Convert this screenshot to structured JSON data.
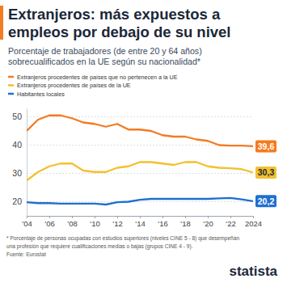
{
  "chart_data": {
    "type": "line",
    "title": [
      "Extranjeros: más expuestos a",
      "empleos por debajo de su nivel"
    ],
    "subtitle": [
      "Porcentaje de trabajadores (de entre 20 y 64 años)",
      "sobrecualificados en la UE según su nacionalidad*"
    ],
    "x": [
      2004,
      2005,
      2006,
      2007,
      2008,
      2009,
      2010,
      2011,
      2012,
      2013,
      2014,
      2015,
      2016,
      2017,
      2018,
      2019,
      2020,
      2021,
      2022,
      2023,
      2024
    ],
    "series": [
      {
        "name": "Extranjeros procedentes de países que no pertenecen a la UE",
        "color": "#f47b20",
        "values": [
          45,
          49,
          50.5,
          50.5,
          49.5,
          48,
          47.5,
          46.5,
          47.5,
          45.5,
          45.5,
          45,
          43.5,
          43,
          43,
          42,
          41.5,
          40,
          39.8,
          39.8,
          39.6
        ],
        "value_labels": [
          null,
          null,
          null,
          null,
          null,
          null,
          null,
          null,
          null,
          null,
          null,
          null,
          null,
          null,
          null,
          null,
          null,
          null,
          null,
          null,
          "39,6"
        ]
      },
      {
        "name": "Extranjeros procedentes de países de la UE",
        "color": "#f2c12e",
        "values": [
          27.5,
          30.5,
          32.5,
          33.5,
          33.5,
          31,
          30.5,
          30.5,
          32,
          32.5,
          34,
          34,
          33.5,
          33,
          34,
          34,
          32.5,
          32,
          31.8,
          31.5,
          30.3
        ],
        "value_labels": [
          null,
          null,
          null,
          null,
          null,
          null,
          null,
          null,
          null,
          null,
          null,
          null,
          null,
          null,
          null,
          null,
          null,
          null,
          null,
          null,
          "30,3"
        ]
      },
      {
        "name": "Habitantes locales",
        "color": "#1f6fd1",
        "values": [
          19.8,
          19.5,
          19.5,
          19.3,
          19.3,
          19.3,
          19.3,
          19,
          19.8,
          20,
          20.7,
          21,
          21,
          21,
          21,
          21,
          21,
          21.2,
          21.3,
          20.8,
          20.2
        ],
        "value_labels": [
          null,
          null,
          null,
          null,
          null,
          null,
          null,
          null,
          null,
          null,
          null,
          null,
          null,
          null,
          null,
          null,
          null,
          null,
          null,
          null,
          "20,2"
        ]
      }
    ],
    "xlim": [
      2004,
      2024
    ],
    "xticks": [
      {
        "value": 2004,
        "label": "'04"
      },
      {
        "value": 2006,
        "label": "'06"
      },
      {
        "value": 2008,
        "label": "'08"
      },
      {
        "value": 2010,
        "label": "'10"
      },
      {
        "value": 2012,
        "label": "'12"
      },
      {
        "value": 2014,
        "label": "'14"
      },
      {
        "value": 2016,
        "label": "'16"
      },
      {
        "value": 2018,
        "label": "'18"
      },
      {
        "value": 2020,
        "label": "'20"
      },
      {
        "value": 2022,
        "label": "'22"
      },
      {
        "value": 2024,
        "label": "2024"
      }
    ],
    "ylim": [
      15,
      53
    ],
    "yticks": [
      20,
      30,
      40,
      50
    ],
    "grid": true,
    "data_labels": true,
    "footnote": [
      "* Porcentaje de personas ocupadas con estudios superiores (niveles CINE 5 - 8) que desempeñan",
      "una profesión que requiere cualificaciones medias o bajas (grupos CINE 4 - 9).",
      "Fuente: Eurostat"
    ],
    "brand": "statista"
  }
}
